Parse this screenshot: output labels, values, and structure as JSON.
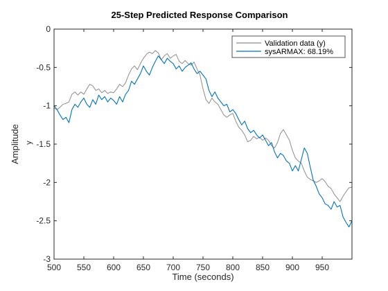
{
  "chart_data": {
    "type": "line",
    "title": "25-Step Predicted Response Comparison",
    "xlabel": "Time (seconds)",
    "ylabel": "Amplitude",
    "inner_ylabel": "y",
    "xlim": [
      500,
      1000
    ],
    "ylim": [
      -3,
      0
    ],
    "xticks": [
      500,
      550,
      600,
      650,
      700,
      750,
      800,
      850,
      900,
      950
    ],
    "xtick_labels": [
      "500",
      "550",
      "600",
      "650",
      "700",
      "750",
      "800",
      "850",
      "900",
      "950"
    ],
    "yticks": [
      0,
      -0.5,
      -1,
      -1.5,
      -2,
      -2.5,
      -3
    ],
    "ytick_labels": [
      "0",
      "-0.5",
      "-1",
      "-1.5",
      "-2",
      "-2.5",
      "-3"
    ],
    "grid": false,
    "legend_position": "top-right",
    "series": [
      {
        "name": "Validation data (y)",
        "color": "#8c8c8c",
        "x": [
          500,
          505,
          510,
          515,
          520,
          525,
          530,
          535,
          540,
          545,
          550,
          555,
          560,
          565,
          570,
          575,
          580,
          585,
          590,
          595,
          600,
          605,
          610,
          615,
          620,
          625,
          630,
          635,
          640,
          645,
          650,
          655,
          660,
          665,
          670,
          675,
          680,
          685,
          690,
          695,
          700,
          705,
          710,
          715,
          720,
          725,
          730,
          735,
          740,
          745,
          750,
          755,
          760,
          765,
          770,
          775,
          780,
          785,
          790,
          795,
          800,
          805,
          810,
          815,
          820,
          825,
          830,
          835,
          840,
          845,
          850,
          855,
          860,
          865,
          870,
          875,
          880,
          885,
          890,
          895,
          900,
          905,
          910,
          915,
          920,
          925,
          930,
          935,
          940,
          945,
          950,
          955,
          960,
          965,
          970,
          975,
          980,
          985,
          990,
          995,
          1000
        ],
        "y": [
          -1.03,
          -1.05,
          -1.02,
          -0.98,
          -0.97,
          -0.95,
          -0.85,
          -0.82,
          -0.86,
          -0.82,
          -0.85,
          -0.78,
          -0.72,
          -0.74,
          -0.8,
          -0.78,
          -0.83,
          -0.8,
          -0.84,
          -0.82,
          -0.83,
          -0.78,
          -0.72,
          -0.75,
          -0.7,
          -0.6,
          -0.52,
          -0.48,
          -0.53,
          -0.45,
          -0.38,
          -0.33,
          -0.3,
          -0.32,
          -0.28,
          -0.31,
          -0.4,
          -0.35,
          -0.32,
          -0.38,
          -0.35,
          -0.33,
          -0.42,
          -0.45,
          -0.41,
          -0.45,
          -0.47,
          -0.43,
          -0.52,
          -0.6,
          -0.78,
          -0.92,
          -0.97,
          -0.9,
          -0.95,
          -0.98,
          -1.05,
          -1.12,
          -1.15,
          -1.12,
          -1.1,
          -1.2,
          -1.28,
          -1.32,
          -1.38,
          -1.47,
          -1.45,
          -1.4,
          -1.43,
          -1.41,
          -1.45,
          -1.42,
          -1.45,
          -1.52,
          -1.55,
          -1.48,
          -1.36,
          -1.31,
          -1.38,
          -1.45,
          -1.58,
          -1.68,
          -1.72,
          -1.75,
          -1.85,
          -1.93,
          -1.96,
          -1.98,
          -2.0,
          -1.98,
          -1.95,
          -1.99,
          -2.05,
          -2.08,
          -2.15,
          -2.2,
          -2.25,
          -2.18,
          -2.12,
          -2.07,
          -2.06
        ]
      },
      {
        "name": "sysARMAX: 68.19%",
        "color": "#0072bd",
        "x": [
          500,
          505,
          510,
          515,
          520,
          525,
          530,
          535,
          540,
          545,
          550,
          555,
          560,
          565,
          570,
          575,
          580,
          585,
          590,
          595,
          600,
          605,
          610,
          615,
          620,
          625,
          630,
          635,
          640,
          645,
          650,
          655,
          660,
          665,
          670,
          675,
          680,
          685,
          690,
          695,
          700,
          705,
          710,
          715,
          720,
          725,
          730,
          735,
          740,
          745,
          750,
          755,
          760,
          765,
          770,
          775,
          780,
          785,
          790,
          795,
          800,
          805,
          810,
          815,
          820,
          825,
          830,
          835,
          840,
          845,
          850,
          855,
          860,
          865,
          870,
          875,
          880,
          885,
          890,
          895,
          900,
          905,
          910,
          915,
          920,
          925,
          930,
          935,
          940,
          945,
          950,
          955,
          960,
          965,
          970,
          975,
          980,
          985,
          990,
          995,
          1000
        ],
        "y": [
          -1.0,
          -1.05,
          -1.12,
          -1.18,
          -1.15,
          -1.22,
          -1.05,
          -0.98,
          -1.02,
          -0.95,
          -0.9,
          -0.98,
          -1.02,
          -0.92,
          -0.98,
          -0.86,
          -0.92,
          -0.88,
          -0.95,
          -0.9,
          -0.93,
          -0.98,
          -0.88,
          -0.95,
          -0.85,
          -0.8,
          -0.68,
          -0.72,
          -0.65,
          -0.58,
          -0.48,
          -0.55,
          -0.6,
          -0.5,
          -0.42,
          -0.35,
          -0.4,
          -0.45,
          -0.38,
          -0.42,
          -0.45,
          -0.52,
          -0.48,
          -0.55,
          -0.5,
          -0.47,
          -0.44,
          -0.52,
          -0.58,
          -0.55,
          -0.6,
          -0.65,
          -0.8,
          -0.88,
          -0.82,
          -0.9,
          -0.95,
          -1.0,
          -0.98,
          -1.08,
          -1.05,
          -1.1,
          -1.18,
          -1.25,
          -1.2,
          -1.3,
          -1.35,
          -1.32,
          -1.38,
          -1.42,
          -1.38,
          -1.45,
          -1.52,
          -1.48,
          -1.6,
          -1.68,
          -1.62,
          -1.65,
          -1.72,
          -1.75,
          -1.85,
          -1.78,
          -1.85,
          -1.7,
          -1.55,
          -1.62,
          -1.8,
          -1.97,
          -2.05,
          -2.15,
          -2.2,
          -2.28,
          -2.3,
          -2.35,
          -2.25,
          -2.32,
          -2.3,
          -2.45,
          -2.52,
          -2.58,
          -2.5
        ]
      }
    ]
  }
}
